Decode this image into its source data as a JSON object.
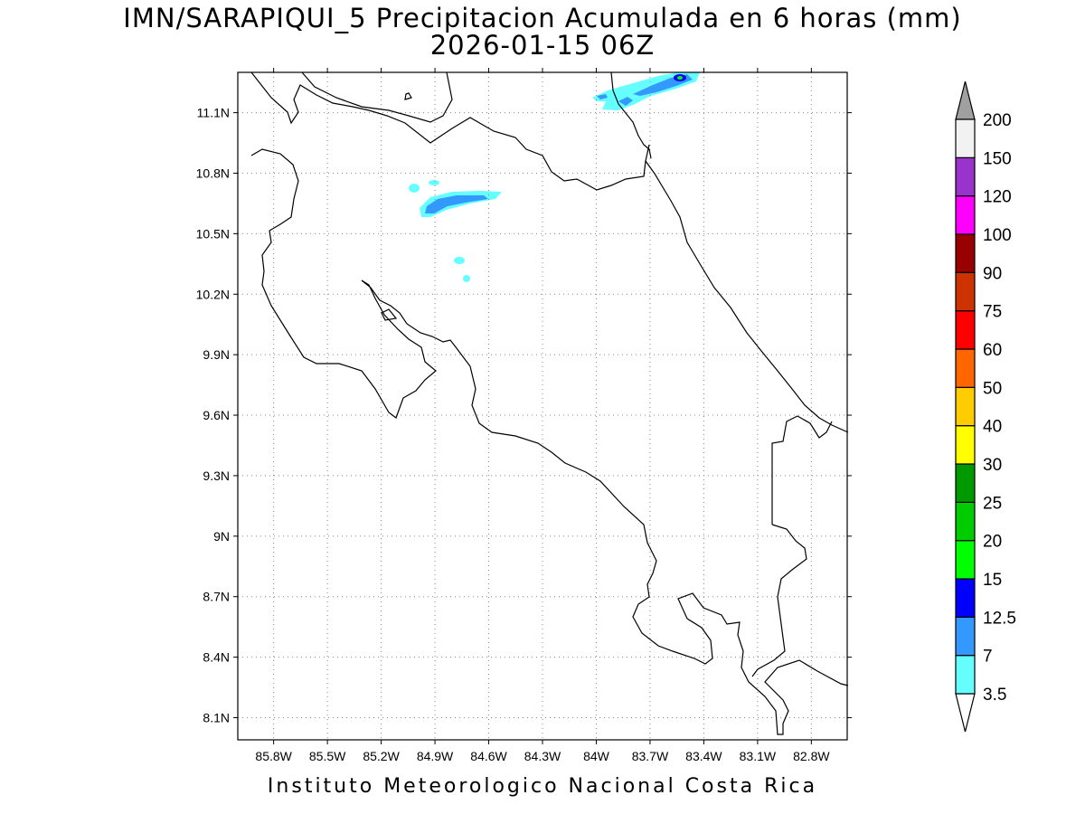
{
  "title": {
    "line1": "IMN/SARAPIQUI_5 Precipitacion Acumulada en 6 horas (mm)",
    "line2": "2026-01-15 06Z"
  },
  "footer": "Instituto Meteorologico Nacional Costa Rica",
  "map": {
    "region": "Costa Rica",
    "lon_range": [
      -86.0,
      -82.6
    ],
    "lat_range": [
      7.99,
      11.3
    ],
    "lat_ticks": [
      {
        "value": 11.1,
        "label": "11.1N"
      },
      {
        "value": 10.8,
        "label": "10.8N"
      },
      {
        "value": 10.5,
        "label": "10.5N"
      },
      {
        "value": 10.2,
        "label": "10.2N"
      },
      {
        "value": 9.9,
        "label": "9.9N"
      },
      {
        "value": 9.6,
        "label": "9.6N"
      },
      {
        "value": 9.3,
        "label": "9.3N"
      },
      {
        "value": 9.0,
        "label": "9N"
      },
      {
        "value": 8.7,
        "label": "8.7N"
      },
      {
        "value": 8.4,
        "label": "8.4N"
      },
      {
        "value": 8.1,
        "label": "8.1N"
      }
    ],
    "lon_ticks": [
      {
        "value": -85.8,
        "label": "85.8W"
      },
      {
        "value": -85.5,
        "label": "85.5W"
      },
      {
        "value": -85.2,
        "label": "85.2W"
      },
      {
        "value": -84.9,
        "label": "84.9W"
      },
      {
        "value": -84.6,
        "label": "84.6W"
      },
      {
        "value": -84.3,
        "label": "84.3W"
      },
      {
        "value": -84.0,
        "label": "84W"
      },
      {
        "value": -83.7,
        "label": "83.7W"
      },
      {
        "value": -83.4,
        "label": "83.4W"
      },
      {
        "value": -83.1,
        "label": "83.1W"
      },
      {
        "value": -82.8,
        "label": "82.8W"
      }
    ],
    "grid": "dotted"
  },
  "colorbar": {
    "top_arrow_color": "#a0a0a0",
    "bottom_arrow_color": "#ffffff",
    "levels": [
      {
        "label": "3.5",
        "color": "#66ffff"
      },
      {
        "label": "7",
        "color": "#3399ff"
      },
      {
        "label": "12.5",
        "color": "#0000ff"
      },
      {
        "label": "15",
        "color": "#00ff00"
      },
      {
        "label": "20",
        "color": "#00cc00"
      },
      {
        "label": "25",
        "color": "#009900"
      },
      {
        "label": "30",
        "color": "#ffff00"
      },
      {
        "label": "40",
        "color": "#ffcc00"
      },
      {
        "label": "50",
        "color": "#ff6600"
      },
      {
        "label": "60",
        "color": "#ff0000"
      },
      {
        "label": "75",
        "color": "#cc3300"
      },
      {
        "label": "90",
        "color": "#990000"
      },
      {
        "label": "100",
        "color": "#ff00ff"
      },
      {
        "label": "120",
        "color": "#9933cc"
      },
      {
        "label": "150",
        "color": "#f2f2f2"
      },
      {
        "label": "200",
        "color": ""
      }
    ]
  },
  "precipitation_features": [
    {
      "description": "northern Nicaragua border band",
      "max_level": "15"
    },
    {
      "description": "north-central band near 10.7N",
      "max_level": "7"
    },
    {
      "description": "small patches near 10.35N",
      "max_level": "3.5"
    }
  ]
}
